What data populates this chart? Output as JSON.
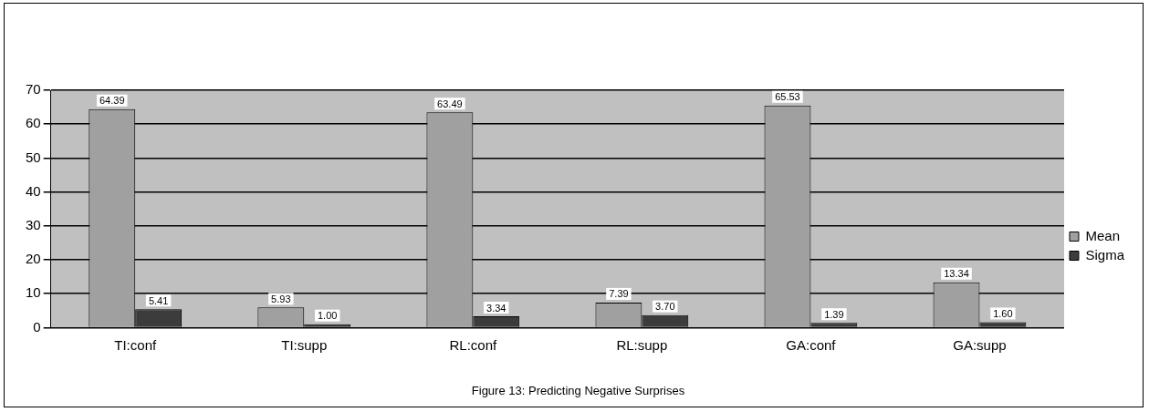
{
  "chart_data": {
    "type": "bar",
    "title": "Figure 13: Predicting Negative Surprises",
    "categories": [
      "TI:conf",
      "TI:supp",
      "RL:conf",
      "RL:supp",
      "GA:conf",
      "GA:supp"
    ],
    "series": [
      {
        "name": "Mean",
        "color": "#a0a0a0",
        "values": [
          64.39,
          5.93,
          63.49,
          7.39,
          65.53,
          13.34
        ],
        "value_labels": [
          "64.39",
          "5.93",
          "63.49",
          "7.39",
          "65.53",
          "13.34"
        ]
      },
      {
        "name": "Sigma",
        "color": "#3c3c3c",
        "values": [
          5.41,
          1.0,
          3.34,
          3.7,
          1.39,
          1.6
        ],
        "value_labels": [
          "5.41",
          "1.00",
          "3.34",
          "3.70",
          "1.39",
          "1.60"
        ]
      }
    ],
    "ylim": [
      0,
      70
    ],
    "yticks": [
      0,
      10,
      20,
      30,
      40,
      50,
      60,
      70
    ],
    "grid": "y",
    "legend": "right"
  }
}
